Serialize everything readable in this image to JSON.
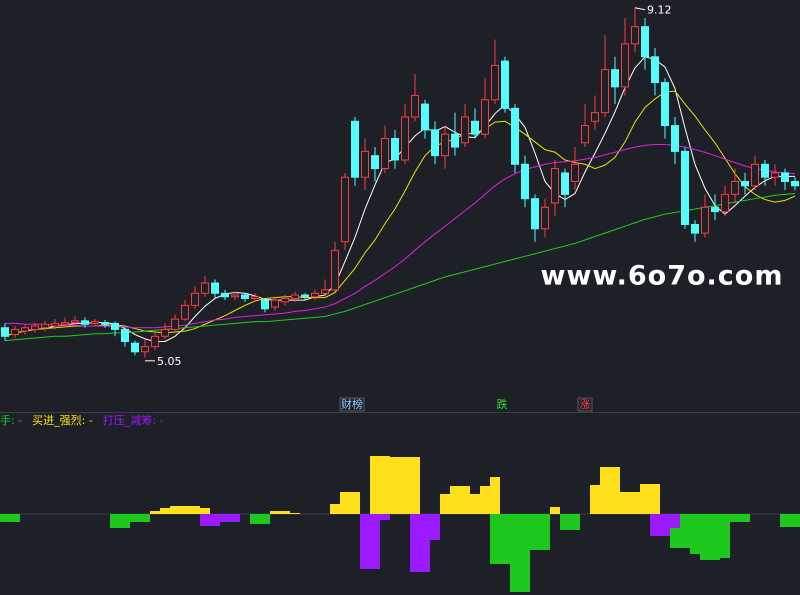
{
  "watermark": "www.6o7o.com",
  "chart_data": [
    {
      "type": "candlestick",
      "up_color": "#ff3c3c",
      "down_color": "#54fcfc",
      "ylim": [
        4.42,
        9.21
      ],
      "open": [
        5.4,
        5.32,
        5.36,
        5.38,
        5.4,
        5.42,
        5.44,
        5.46,
        5.48,
        5.45,
        5.46,
        5.45,
        5.38,
        5.22,
        5.12,
        5.18,
        5.3,
        5.38,
        5.5,
        5.66,
        5.8,
        5.92,
        5.8,
        5.76,
        5.78,
        5.74,
        5.72,
        5.64,
        5.7,
        5.74,
        5.78,
        5.76,
        5.8,
        5.84,
        6.4,
        7.8,
        7.15,
        7.4,
        7.25,
        7.6,
        7.35,
        7.85,
        8.0,
        7.7,
        7.4,
        7.65,
        7.55,
        7.8,
        7.65,
        8.05,
        8.5,
        7.95,
        7.3,
        6.9,
        6.55,
        6.85,
        7.2,
        7.1,
        7.55,
        7.8,
        7.9,
        8.4,
        8.2,
        8.7,
        8.9,
        8.55,
        8.25,
        7.75,
        7.45,
        6.6,
        6.5,
        6.8,
        6.75,
        6.95,
        7.1,
        7.05,
        7.3,
        7.15,
        7.2,
        7.1
      ],
      "high": [
        5.45,
        5.42,
        5.44,
        5.46,
        5.48,
        5.5,
        5.52,
        5.53,
        5.52,
        5.5,
        5.49,
        5.47,
        5.4,
        5.25,
        5.26,
        5.34,
        5.45,
        5.55,
        5.72,
        5.88,
        6.0,
        5.96,
        5.84,
        5.82,
        5.8,
        5.8,
        5.74,
        5.76,
        5.78,
        5.82,
        5.8,
        5.84,
        5.96,
        6.4,
        7.2,
        7.85,
        7.6,
        7.5,
        7.75,
        7.7,
        8.0,
        8.35,
        8.05,
        7.8,
        7.75,
        7.9,
        8.0,
        7.95,
        8.3,
        8.75,
        8.55,
        8.0,
        7.4,
        6.95,
        6.9,
        7.35,
        7.25,
        7.5,
        8.0,
        8.1,
        8.8,
        8.55,
        9.0,
        9.12,
        9.0,
        8.65,
        8.3,
        7.85,
        7.5,
        6.65,
        6.95,
        6.95,
        7.05,
        7.25,
        7.2,
        7.4,
        7.35,
        7.3,
        7.25,
        7.15
      ],
      "low": [
        5.25,
        5.28,
        5.32,
        5.34,
        5.36,
        5.38,
        5.4,
        5.42,
        5.4,
        5.42,
        5.4,
        5.3,
        5.18,
        5.08,
        5.05,
        5.14,
        5.27,
        5.35,
        5.48,
        5.62,
        5.76,
        5.74,
        5.72,
        5.72,
        5.7,
        5.7,
        5.58,
        5.6,
        5.66,
        5.7,
        5.72,
        5.72,
        5.78,
        5.82,
        6.3,
        7.05,
        7.0,
        7.1,
        7.2,
        7.25,
        7.3,
        7.8,
        7.6,
        7.3,
        7.25,
        7.4,
        7.5,
        7.6,
        7.6,
        8.0,
        7.9,
        7.2,
        6.8,
        6.4,
        6.45,
        6.7,
        6.8,
        7.0,
        7.5,
        7.7,
        7.85,
        8.0,
        8.1,
        8.6,
        8.4,
        8.1,
        7.6,
        7.3,
        6.55,
        6.4,
        6.45,
        6.65,
        6.7,
        6.85,
        6.95,
        7.0,
        7.05,
        7.05,
        7.0,
        7.0
      ],
      "close": [
        5.3,
        5.38,
        5.4,
        5.42,
        5.44,
        5.45,
        5.46,
        5.48,
        5.44,
        5.47,
        5.44,
        5.38,
        5.24,
        5.12,
        5.18,
        5.3,
        5.38,
        5.5,
        5.66,
        5.8,
        5.92,
        5.8,
        5.76,
        5.78,
        5.74,
        5.76,
        5.62,
        5.72,
        5.74,
        5.78,
        5.76,
        5.8,
        5.84,
        6.3,
        7.15,
        7.15,
        7.45,
        7.25,
        7.6,
        7.35,
        7.85,
        8.1,
        7.7,
        7.4,
        7.65,
        7.5,
        7.85,
        7.65,
        8.05,
        8.45,
        7.95,
        7.3,
        6.9,
        6.55,
        6.8,
        7.25,
        6.95,
        7.3,
        7.75,
        7.9,
        8.4,
        8.2,
        8.7,
        8.9,
        8.55,
        8.25,
        7.75,
        7.45,
        6.6,
        6.5,
        6.8,
        6.75,
        6.95,
        7.1,
        7.05,
        7.3,
        7.15,
        7.2,
        7.1,
        7.05
      ],
      "lines": [
        {
          "color": "#ffffff",
          "values": [
            5.3,
            5.34,
            5.36,
            5.38,
            5.39,
            5.42,
            5.43,
            5.45,
            5.45,
            5.46,
            5.46,
            5.44,
            5.39,
            5.32,
            5.27,
            5.24,
            5.24,
            5.3,
            5.4,
            5.53,
            5.65,
            5.74,
            5.79,
            5.81,
            5.8,
            5.77,
            5.73,
            5.72,
            5.72,
            5.72,
            5.72,
            5.76,
            5.78,
            5.9,
            6.17,
            6.45,
            6.78,
            7.06,
            7.32,
            7.36,
            7.5,
            7.63,
            7.72,
            7.68,
            7.74,
            7.67,
            7.62,
            7.61,
            7.74,
            7.89,
            7.99,
            7.88,
            7.73,
            7.43,
            7.1,
            6.96,
            6.89,
            6.96,
            7.21,
            7.43,
            7.66,
            7.91,
            8.19,
            8.42,
            8.55,
            8.52,
            8.43,
            8.18,
            7.72,
            7.3,
            7.02,
            6.82,
            6.72,
            6.82,
            6.93,
            7.03,
            7.11,
            7.16,
            7.16,
            7.16
          ]
        },
        {
          "color": "#e6e600",
          "values": [
            5.3,
            5.34,
            5.36,
            5.38,
            5.39,
            5.4,
            5.41,
            5.42,
            5.42,
            5.42,
            5.43,
            5.43,
            5.42,
            5.39,
            5.36,
            5.35,
            5.34,
            5.35,
            5.36,
            5.39,
            5.44,
            5.49,
            5.54,
            5.6,
            5.66,
            5.71,
            5.74,
            5.75,
            5.76,
            5.76,
            5.75,
            5.75,
            5.75,
            5.81,
            5.95,
            6.09,
            6.27,
            6.42,
            6.61,
            6.78,
            6.99,
            7.21,
            7.4,
            7.51,
            7.56,
            7.59,
            7.66,
            7.66,
            7.71,
            7.79,
            7.8,
            7.73,
            7.65,
            7.56,
            7.47,
            7.44,
            7.35,
            7.32,
            7.3,
            7.25,
            7.29,
            7.38,
            7.56,
            7.79,
            7.96,
            8.06,
            8.14,
            8.15,
            8.0,
            7.86,
            7.7,
            7.55,
            7.37,
            7.19,
            7.04,
            6.95,
            6.89,
            6.86,
            6.88,
            6.93
          ]
        },
        {
          "color": "#e020e0",
          "values": [
            5.45,
            5.45,
            5.44,
            5.44,
            5.44,
            5.43,
            5.43,
            5.43,
            5.42,
            5.42,
            5.42,
            5.41,
            5.41,
            5.4,
            5.4,
            5.4,
            5.41,
            5.42,
            5.43,
            5.45,
            5.47,
            5.49,
            5.5,
            5.52,
            5.53,
            5.54,
            5.55,
            5.56,
            5.57,
            5.59,
            5.6,
            5.62,
            5.64,
            5.68,
            5.74,
            5.8,
            5.88,
            5.95,
            6.03,
            6.11,
            6.2,
            6.3,
            6.4,
            6.49,
            6.58,
            6.67,
            6.76,
            6.85,
            6.95,
            7.05,
            7.13,
            7.19,
            7.24,
            7.27,
            7.3,
            7.32,
            7.33,
            7.34,
            7.36,
            7.38,
            7.41,
            7.44,
            7.47,
            7.5,
            7.52,
            7.53,
            7.53,
            7.52,
            7.5,
            7.47,
            7.44,
            7.4,
            7.36,
            7.32,
            7.28,
            7.25,
            7.23,
            7.21,
            7.2,
            7.19
          ]
        },
        {
          "color": "#1ecc1e",
          "values": [
            5.25,
            5.26,
            5.27,
            5.28,
            5.29,
            5.3,
            5.3,
            5.31,
            5.32,
            5.33,
            5.33,
            5.34,
            5.34,
            5.35,
            5.36,
            5.37,
            5.38,
            5.39,
            5.4,
            5.41,
            5.42,
            5.43,
            5.44,
            5.45,
            5.46,
            5.47,
            5.47,
            5.48,
            5.49,
            5.5,
            5.51,
            5.52,
            5.53,
            5.56,
            5.59,
            5.63,
            5.67,
            5.71,
            5.75,
            5.79,
            5.83,
            5.87,
            5.91,
            5.95,
            5.99,
            6.02,
            6.05,
            6.08,
            6.11,
            6.14,
            6.17,
            6.2,
            6.23,
            6.26,
            6.29,
            6.32,
            6.35,
            6.38,
            6.42,
            6.46,
            6.5,
            6.54,
            6.58,
            6.62,
            6.66,
            6.69,
            6.72,
            6.74,
            6.76,
            6.78,
            6.8,
            6.82,
            6.84,
            6.86,
            6.88,
            6.9,
            6.92,
            6.94,
            6.95,
            6.96
          ]
        }
      ],
      "high_label": "9.12",
      "low_label": "5.05",
      "event_labels": [
        "财榜",
        "跌",
        "涨"
      ]
    },
    {
      "type": "bar",
      "ylim": [
        -81,
        84
      ],
      "series": [
        {
          "name": "手: -",
          "color": "#1ec81e",
          "values": [
            -8,
            -8,
            null,
            null,
            null,
            null,
            null,
            null,
            null,
            null,
            null,
            -14,
            -14,
            -8,
            -8,
            null,
            null,
            null,
            null,
            null,
            null,
            null,
            null,
            null,
            null,
            -10,
            -10,
            null,
            null,
            null,
            null,
            null,
            null,
            null,
            null,
            null,
            null,
            null,
            null,
            null,
            null,
            null,
            null,
            null,
            null,
            null,
            null,
            null,
            null,
            -50,
            -50,
            -78,
            -78,
            -36,
            -36,
            null,
            -16,
            -16,
            null,
            null,
            null,
            null,
            null,
            null,
            null,
            null,
            null,
            -34,
            -34,
            -40,
            -46,
            -46,
            -44,
            -8,
            -8,
            null,
            null,
            null,
            -13,
            -13
          ]
        },
        {
          "name": "买进_强烈: -",
          "color": "#ffe01a",
          "values": [
            null,
            null,
            null,
            null,
            null,
            null,
            null,
            null,
            null,
            null,
            null,
            null,
            null,
            null,
            null,
            3,
            6,
            8,
            8,
            8,
            6,
            null,
            null,
            null,
            null,
            null,
            null,
            3,
            3,
            1,
            null,
            null,
            null,
            10,
            22,
            22,
            null,
            58,
            58,
            57,
            57,
            57,
            null,
            null,
            20,
            28,
            28,
            20,
            28,
            37,
            null,
            null,
            null,
            null,
            null,
            7,
            null,
            null,
            null,
            29,
            47,
            47,
            22,
            22,
            30,
            30,
            null,
            null,
            null,
            null,
            null,
            null,
            null,
            null,
            null,
            null,
            null,
            null,
            null,
            null
          ]
        },
        {
          "name": "打压_减筹: -",
          "color": "#9b1aff",
          "values": [
            null,
            null,
            null,
            null,
            null,
            null,
            null,
            null,
            null,
            null,
            null,
            null,
            null,
            null,
            null,
            null,
            null,
            null,
            null,
            null,
            -12,
            -12,
            -8,
            -8,
            null,
            null,
            null,
            null,
            null,
            null,
            null,
            null,
            null,
            null,
            null,
            null,
            -55,
            -55,
            -6,
            null,
            null,
            -58,
            -58,
            -26,
            null,
            null,
            null,
            null,
            null,
            null,
            null,
            null,
            null,
            null,
            null,
            null,
            null,
            null,
            null,
            null,
            null,
            null,
            null,
            null,
            null,
            -22,
            -22,
            -14,
            null,
            null,
            null,
            null,
            null,
            null,
            null,
            null,
            null,
            null,
            null,
            null
          ]
        }
      ]
    }
  ]
}
